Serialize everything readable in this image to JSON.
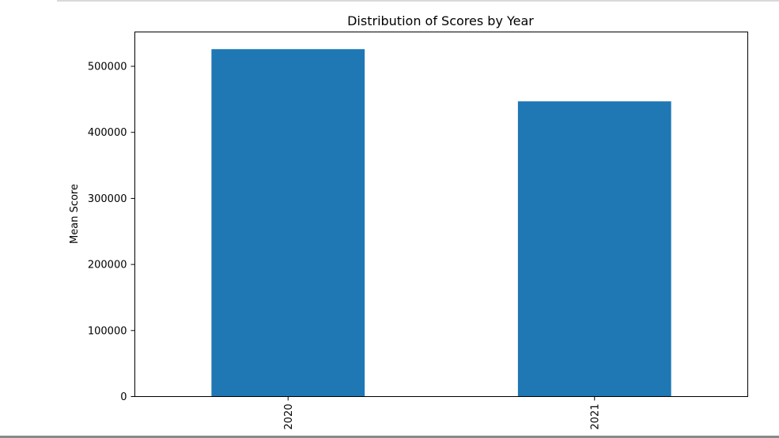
{
  "chart_data": {
    "type": "bar",
    "title": "Distribution of Scores by Year",
    "xlabel": "",
    "ylabel": "Mean Score",
    "categories": [
      "2020",
      "2021"
    ],
    "values": [
      526000,
      447000
    ],
    "ylim": [
      0,
      552000
    ],
    "yticks": [
      0,
      100000,
      200000,
      300000,
      400000,
      500000
    ],
    "ytick_labels": [
      "0",
      "100000",
      "200000",
      "300000",
      "400000",
      "500000"
    ],
    "bar_color": "#1f77b4",
    "grid": false,
    "legend": false
  }
}
